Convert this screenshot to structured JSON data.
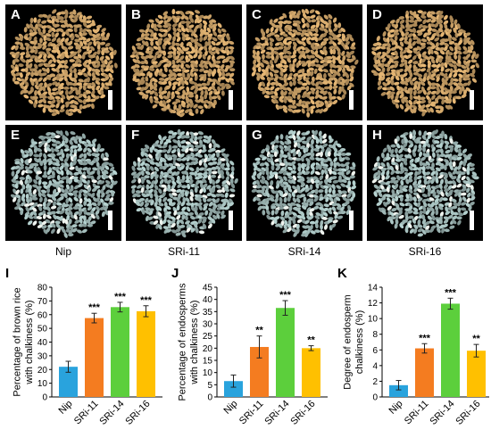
{
  "figure": {
    "photo_panels": [
      {
        "letter": "A",
        "grain": "brown"
      },
      {
        "letter": "B",
        "grain": "brown"
      },
      {
        "letter": "C",
        "grain": "brown"
      },
      {
        "letter": "D",
        "grain": "brown"
      },
      {
        "letter": "E",
        "grain": "endosperm"
      },
      {
        "letter": "F",
        "grain": "endosperm"
      },
      {
        "letter": "G",
        "grain": "endosperm"
      },
      {
        "letter": "H",
        "grain": "endosperm"
      }
    ],
    "genotype_labels": [
      "Nip",
      "SRi-11",
      "SRi-14",
      "SRi-16"
    ],
    "colors": {
      "brown_grain": "#c9a066",
      "endosperm_grain": "#9fb8b6",
      "Nip": "#29a3dd",
      "SRi-11": "#f47c20",
      "SRi-14": "#5ccf3c",
      "SRi-16": "#ffc000"
    }
  },
  "chart_data": [
    {
      "panel": "I",
      "type": "bar",
      "categories": [
        "Nip",
        "SRi-11",
        "SRi-14",
        "SRi-16"
      ],
      "values": [
        22,
        57.5,
        65.5,
        62.5
      ],
      "errors": [
        4,
        3.5,
        3.5,
        4
      ],
      "significance": [
        "",
        "***",
        "***",
        "***"
      ],
      "ylabel": "Percentage of brown rice with chalkiness (%)",
      "ylim": [
        0,
        80
      ],
      "yticks": [
        0,
        10,
        20,
        30,
        40,
        50,
        60,
        70,
        80
      ]
    },
    {
      "panel": "J",
      "type": "bar",
      "categories": [
        "Nip",
        "SRi-11",
        "SRi-14",
        "SRi-16"
      ],
      "values": [
        6.5,
        20.5,
        36.5,
        20
      ],
      "errors": [
        2.5,
        4.5,
        3,
        1
      ],
      "significance": [
        "",
        "**",
        "***",
        "**"
      ],
      "ylabel": "Percentage of endosperms with chalkiness (%)",
      "ylim": [
        0,
        45
      ],
      "yticks": [
        0,
        5,
        10,
        15,
        20,
        25,
        30,
        35,
        40,
        45
      ]
    },
    {
      "panel": "K",
      "type": "bar",
      "categories": [
        "Nip",
        "SRi-11",
        "SRi-14",
        "SRi-16"
      ],
      "values": [
        1.5,
        6.2,
        11.9,
        5.9
      ],
      "errors": [
        0.6,
        0.6,
        0.7,
        0.8
      ],
      "significance": [
        "",
        "***",
        "***",
        "**"
      ],
      "ylabel": "Degree of endosperm chalkiness (%)",
      "ylim": [
        0,
        14
      ],
      "yticks": [
        0,
        2,
        4,
        6,
        8,
        10,
        12,
        14
      ]
    }
  ]
}
